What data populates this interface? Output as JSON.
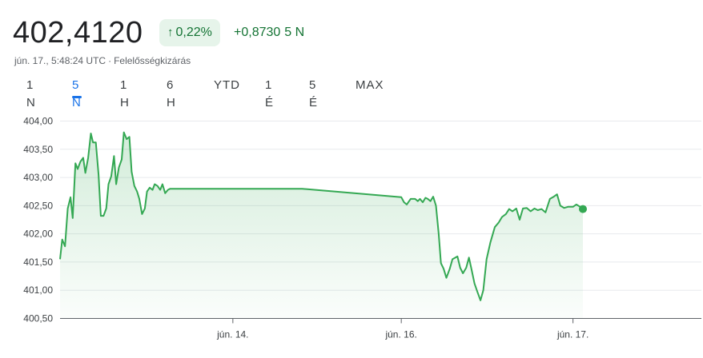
{
  "header": {
    "price": "402,4120",
    "change_percent": "0,22%",
    "change_value": "+0,8730",
    "change_period": "5 N",
    "timestamp": "jún. 17., 5:48:24 UTC",
    "separator": "·",
    "disclaimer": "Felelősségkizárás",
    "arrow_icon": "arrow-up-icon"
  },
  "tabs": [
    {
      "label": "1 N",
      "active": false
    },
    {
      "label": "5 N",
      "active": true
    },
    {
      "label": "1 H",
      "active": false
    },
    {
      "label": "6 H",
      "active": false
    },
    {
      "label": "YTD",
      "active": false
    },
    {
      "label": "1 É",
      "active": false
    },
    {
      "label": "5 É",
      "active": false
    },
    {
      "label": "MAX",
      "active": false
    }
  ],
  "colors": {
    "line": "#34a853",
    "positive_text": "#137333",
    "badge_bg": "#e6f4ea",
    "active_tab": "#1a73e8",
    "grid": "#e8eaed"
  },
  "chart_data": {
    "type": "area",
    "ylim": [
      400.5,
      404.0
    ],
    "yticks": [
      404.0,
      403.5,
      403.0,
      402.5,
      402.0,
      401.5,
      401.0,
      400.5
    ],
    "ytick_labels": [
      "404,00",
      "403,50",
      "403,00",
      "402,50",
      "402,00",
      "401,50",
      "401,00",
      "400,50"
    ],
    "xticks": [
      {
        "t": 0.314,
        "label": "jún. 14."
      },
      {
        "t": 0.62,
        "label": "jún. 16."
      },
      {
        "t": 0.932,
        "label": "jún. 17."
      }
    ],
    "grid": true,
    "series": [
      {
        "values": [
          [
            0.0,
            401.55
          ],
          [
            0.004,
            401.9
          ],
          [
            0.009,
            401.78
          ],
          [
            0.014,
            402.45
          ],
          [
            0.019,
            402.65
          ],
          [
            0.023,
            402.28
          ],
          [
            0.028,
            403.25
          ],
          [
            0.032,
            403.15
          ],
          [
            0.037,
            403.28
          ],
          [
            0.042,
            403.35
          ],
          [
            0.046,
            403.08
          ],
          [
            0.051,
            403.35
          ],
          [
            0.056,
            403.78
          ],
          [
            0.06,
            403.62
          ],
          [
            0.065,
            403.62
          ],
          [
            0.07,
            403.05
          ],
          [
            0.074,
            402.32
          ],
          [
            0.079,
            402.32
          ],
          [
            0.084,
            402.45
          ],
          [
            0.088,
            402.88
          ],
          [
            0.093,
            403.02
          ],
          [
            0.098,
            403.38
          ],
          [
            0.102,
            402.88
          ],
          [
            0.107,
            403.18
          ],
          [
            0.112,
            403.32
          ],
          [
            0.116,
            403.8
          ],
          [
            0.121,
            403.68
          ],
          [
            0.126,
            403.72
          ],
          [
            0.13,
            403.1
          ],
          [
            0.135,
            402.85
          ],
          [
            0.14,
            402.75
          ],
          [
            0.144,
            402.62
          ],
          [
            0.149,
            402.35
          ],
          [
            0.154,
            402.45
          ],
          [
            0.158,
            402.75
          ],
          [
            0.163,
            402.82
          ],
          [
            0.168,
            402.78
          ],
          [
            0.172,
            402.88
          ],
          [
            0.177,
            402.85
          ],
          [
            0.182,
            402.78
          ],
          [
            0.186,
            402.88
          ],
          [
            0.191,
            402.72
          ],
          [
            0.196,
            402.78
          ],
          [
            0.2,
            402.8
          ],
          [
            0.44,
            402.8
          ],
          [
            0.62,
            402.65
          ],
          [
            0.625,
            402.56
          ],
          [
            0.63,
            402.52
          ],
          [
            0.637,
            402.62
          ],
          [
            0.645,
            402.62
          ],
          [
            0.65,
            402.58
          ],
          [
            0.654,
            402.62
          ],
          [
            0.659,
            402.56
          ],
          [
            0.664,
            402.64
          ],
          [
            0.668,
            402.62
          ],
          [
            0.673,
            402.58
          ],
          [
            0.678,
            402.66
          ],
          [
            0.683,
            402.5
          ],
          [
            0.688,
            402.0
          ],
          [
            0.692,
            401.48
          ],
          [
            0.697,
            401.38
          ],
          [
            0.702,
            401.22
          ],
          [
            0.708,
            401.38
          ],
          [
            0.713,
            401.55
          ],
          [
            0.722,
            401.6
          ],
          [
            0.727,
            401.4
          ],
          [
            0.732,
            401.3
          ],
          [
            0.738,
            401.4
          ],
          [
            0.743,
            401.58
          ],
          [
            0.748,
            401.35
          ],
          [
            0.753,
            401.12
          ],
          [
            0.758,
            400.98
          ],
          [
            0.764,
            400.82
          ],
          [
            0.769,
            401.0
          ],
          [
            0.775,
            401.55
          ],
          [
            0.782,
            401.85
          ],
          [
            0.79,
            402.12
          ],
          [
            0.797,
            402.2
          ],
          [
            0.803,
            402.3
          ],
          [
            0.81,
            402.35
          ],
          [
            0.816,
            402.44
          ],
          [
            0.822,
            402.4
          ],
          [
            0.829,
            402.45
          ],
          [
            0.835,
            402.25
          ],
          [
            0.841,
            402.45
          ],
          [
            0.848,
            402.46
          ],
          [
            0.855,
            402.4
          ],
          [
            0.862,
            402.45
          ],
          [
            0.868,
            402.42
          ],
          [
            0.875,
            402.44
          ],
          [
            0.882,
            402.38
          ],
          [
            0.89,
            402.62
          ],
          [
            0.897,
            402.66
          ],
          [
            0.903,
            402.7
          ],
          [
            0.909,
            402.5
          ],
          [
            0.916,
            402.46
          ],
          [
            0.923,
            402.48
          ],
          [
            0.932,
            402.48
          ],
          [
            0.938,
            402.52
          ],
          [
            0.945,
            402.48
          ],
          [
            0.95,
            402.44
          ]
        ]
      }
    ]
  }
}
